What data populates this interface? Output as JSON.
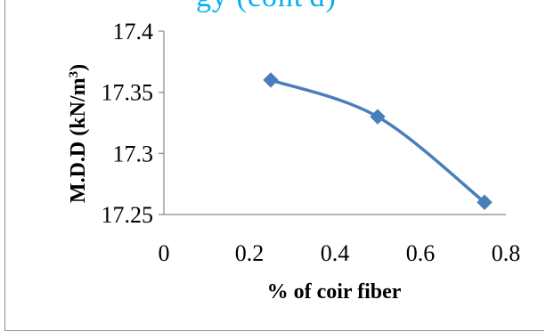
{
  "header_fragment": "gy (cont'd)",
  "chart_data": {
    "type": "line",
    "title": "",
    "xlabel": "% of coir fiber",
    "ylabel": "M.D.D (kN/m³)",
    "ylabel_main": "M.D.D (kN/m",
    "ylabel_sup": "3",
    "ylabel_tail": ")",
    "xlim": [
      0,
      0.8
    ],
    "ylim": [
      17.25,
      17.4
    ],
    "xticks": [
      "0",
      "0.2",
      "0.4",
      "0.6",
      "0.8"
    ],
    "yticks": [
      "17.25",
      "17.3",
      "17.35",
      "17.4"
    ],
    "xtick_values": [
      0,
      0.2,
      0.4,
      0.6,
      0.8
    ],
    "ytick_values": [
      17.25,
      17.3,
      17.35,
      17.4
    ],
    "grid": false,
    "marker": "diamond",
    "series_color": "#4a7ebb",
    "series": [
      {
        "x": [
          0.25,
          0.5,
          0.75
        ],
        "y": [
          17.36,
          17.33,
          17.26
        ]
      }
    ]
  }
}
